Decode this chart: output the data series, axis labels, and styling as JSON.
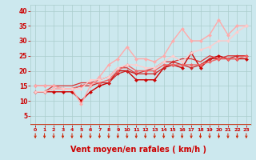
{
  "bg_color": "#cce8ee",
  "grid_color": "#aacccc",
  "xlabel": "Vent moyen/en rafales ( km/h )",
  "xlabel_color": "#cc0000",
  "xlabel_fontsize": 7,
  "tick_color": "#cc0000",
  "arrow_color": "#cc2200",
  "xlim": [
    -0.5,
    23.5
  ],
  "ylim": [
    2,
    42
  ],
  "yticks": [
    5,
    10,
    15,
    20,
    25,
    30,
    35,
    40
  ],
  "xticks": [
    0,
    1,
    2,
    3,
    4,
    5,
    6,
    7,
    8,
    9,
    10,
    11,
    12,
    13,
    14,
    15,
    16,
    17,
    18,
    19,
    20,
    21,
    22,
    23
  ],
  "lines": [
    {
      "x": [
        0,
        1,
        2,
        3,
        4,
        5,
        6,
        7,
        8,
        9,
        10,
        11,
        12,
        13,
        14,
        15,
        16,
        17,
        18,
        19,
        20,
        21,
        22,
        23
      ],
      "y": [
        13,
        13,
        13,
        13,
        13,
        10,
        13,
        15,
        16,
        20,
        20,
        17,
        17,
        17,
        21,
        22,
        21,
        26,
        21,
        24,
        25,
        24,
        24,
        24
      ],
      "color": "#cc0000",
      "lw": 1.0,
      "marker": "D",
      "ms": 2.2
    },
    {
      "x": [
        0,
        1,
        2,
        3,
        4,
        5,
        6,
        7,
        8,
        9,
        10,
        11,
        12,
        13,
        14,
        15,
        16,
        17,
        18,
        19,
        20,
        21,
        22,
        23
      ],
      "y": [
        13,
        13,
        14,
        14,
        14,
        15,
        15,
        16,
        16,
        19,
        20,
        19,
        19,
        19,
        21,
        23,
        22,
        21,
        22,
        24,
        24,
        24,
        25,
        25
      ],
      "color": "#cc2222",
      "lw": 0.9,
      "marker": "D",
      "ms": 2.0
    },
    {
      "x": [
        0,
        1,
        2,
        3,
        4,
        5,
        6,
        7,
        8,
        9,
        10,
        11,
        12,
        13,
        14,
        15,
        16,
        17,
        18,
        19,
        20,
        21,
        22,
        23
      ],
      "y": [
        13,
        13,
        15,
        15,
        15,
        16,
        16,
        17,
        18,
        21,
        21,
        19,
        20,
        21,
        23,
        23,
        24,
        24,
        23,
        25,
        24,
        25,
        25,
        25
      ],
      "color": "#dd3333",
      "lw": 0.9,
      "marker": null,
      "ms": 0
    },
    {
      "x": [
        0,
        1,
        2,
        3,
        4,
        5,
        6,
        7,
        8,
        9,
        10,
        11,
        12,
        13,
        14,
        15,
        16,
        17,
        18,
        19,
        20,
        21,
        22,
        23
      ],
      "y": [
        15,
        15,
        15,
        14,
        14,
        15,
        16,
        16,
        17,
        20,
        22,
        20,
        20,
        20,
        22,
        22,
        22,
        22,
        22,
        23,
        24,
        24,
        24,
        25
      ],
      "color": "#ee6666",
      "lw": 1.0,
      "marker": "D",
      "ms": 2.2
    },
    {
      "x": [
        0,
        1,
        2,
        3,
        4,
        5,
        6,
        7,
        8,
        9,
        10,
        11,
        12,
        13,
        14,
        15,
        16,
        17,
        18,
        19,
        20,
        21,
        22,
        23
      ],
      "y": [
        15,
        15,
        15,
        14,
        14,
        9,
        15,
        18,
        22,
        24,
        28,
        24,
        24,
        23,
        25,
        30,
        34,
        30,
        30,
        32,
        37,
        32,
        35,
        35
      ],
      "color": "#ffaaaa",
      "lw": 1.0,
      "marker": "D",
      "ms": 2.2
    },
    {
      "x": [
        0,
        1,
        2,
        3,
        4,
        5,
        6,
        7,
        8,
        9,
        10,
        11,
        12,
        13,
        14,
        15,
        16,
        17,
        18,
        19,
        20,
        21,
        22,
        23
      ],
      "y": [
        13,
        13,
        14,
        14,
        14,
        14,
        17,
        17,
        18,
        21,
        22,
        22,
        21,
        21,
        23,
        25,
        23,
        26,
        27,
        28,
        30,
        30,
        33,
        35
      ],
      "color": "#ffcccc",
      "lw": 1.0,
      "marker": "D",
      "ms": 2.0
    }
  ]
}
